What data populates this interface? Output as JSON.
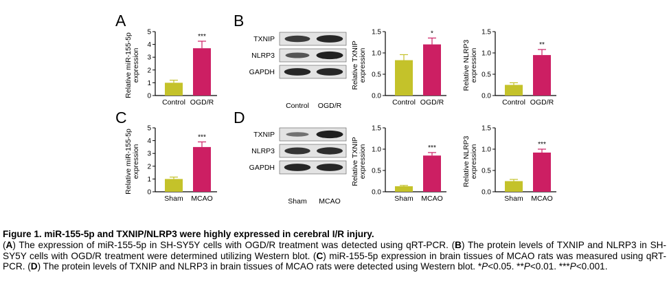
{
  "colors": {
    "olive": "#c4c22a",
    "magenta": "#cc1f63",
    "blot_dark": "#121212",
    "blot_bg": "#e3e3e3"
  },
  "panels": [
    {
      "letter": "A"
    },
    {
      "letter": "B"
    },
    {
      "letter": "C"
    },
    {
      "letter": "D"
    }
  ],
  "chart_data": [
    {
      "panel": "A",
      "type": "bar",
      "categories": [
        "Control",
        "OGD/R"
      ],
      "values": [
        1.0,
        3.7
      ],
      "errors": [
        0.2,
        0.55
      ],
      "ylabel": "Relative  miR-155-5p expression",
      "ylim": [
        0,
        5
      ],
      "yticks": [
        "0",
        "1",
        "2",
        "3",
        "4",
        "5"
      ],
      "annotations": [
        "",
        "***"
      ]
    },
    {
      "panel": "B",
      "type": "bar",
      "categories": [
        "Control",
        "OGD/R"
      ],
      "values": [
        0.83,
        1.2
      ],
      "errors": [
        0.13,
        0.15
      ],
      "ylabel": "Relative  TXNIP expression",
      "ylim": [
        0,
        1.5
      ],
      "yticks": [
        "0.0",
        "0.5",
        "1.0",
        "1.5"
      ],
      "annotations": [
        "",
        "*"
      ]
    },
    {
      "panel": "B",
      "type": "bar",
      "categories": [
        "Control",
        "OGD/R"
      ],
      "values": [
        0.25,
        0.95
      ],
      "errors": [
        0.05,
        0.13
      ],
      "ylabel": "Relative  NLRP3 expression",
      "ylim": [
        0,
        1.5
      ],
      "yticks": [
        "0.0",
        "0.5",
        "1.0",
        "1.5"
      ],
      "annotations": [
        "",
        "**"
      ]
    },
    {
      "panel": "C",
      "type": "bar",
      "categories": [
        "Sham",
        "MCAO"
      ],
      "values": [
        1.0,
        3.5
      ],
      "errors": [
        0.15,
        0.4
      ],
      "ylabel": "Relative  miR-155-5p expression",
      "ylim": [
        0,
        5
      ],
      "yticks": [
        "0",
        "1",
        "2",
        "3",
        "4",
        "5"
      ],
      "annotations": [
        "",
        "***"
      ]
    },
    {
      "panel": "D",
      "type": "bar",
      "categories": [
        "Sham",
        "MCAO"
      ],
      "values": [
        0.13,
        0.85
      ],
      "errors": [
        0.02,
        0.07
      ],
      "ylabel": "Relative  TXNIP expression",
      "ylim": [
        0,
        1.5
      ],
      "yticks": [
        "0.0",
        "0.5",
        "1.0",
        "1.5"
      ],
      "annotations": [
        "",
        "***"
      ]
    },
    {
      "panel": "D",
      "type": "bar",
      "categories": [
        "Sham",
        "MCAO"
      ],
      "values": [
        0.25,
        0.92
      ],
      "errors": [
        0.04,
        0.08
      ],
      "ylabel": "Relative  NLRP3 expression",
      "ylim": [
        0,
        1.5
      ],
      "yticks": [
        "0.0",
        "0.5",
        "1.0",
        "1.5"
      ],
      "annotations": [
        "",
        "***"
      ]
    }
  ],
  "blots": [
    {
      "panel": "B",
      "bands": [
        "TXNIP",
        "NLRP3",
        "GAPDH"
      ],
      "lanes": [
        "Control",
        "OGD/R"
      ],
      "intensity": [
        [
          0.7,
          0.85
        ],
        [
          0.5,
          0.9
        ],
        [
          0.85,
          0.85
        ]
      ]
    },
    {
      "panel": "D",
      "bands": [
        "TXNIP",
        "NLRP3",
        "GAPDH"
      ],
      "lanes": [
        "Sham",
        "MCAO"
      ],
      "intensity": [
        [
          0.3,
          0.9
        ],
        [
          0.75,
          0.8
        ],
        [
          0.85,
          0.85
        ]
      ]
    }
  ],
  "caption": {
    "title": "Figure 1. miR-155-5p and TXNIP/NLRP3 were highly expressed in cerebral I/R injury.",
    "body_html": "(<b>A</b>) The expression of miR-155-5p in SH-SY5Y cells with OGD/R treatment was detected using qRT-PCR. (<b>B</b>) The protein levels of TXNIP and NLRP3 in SH-SY5Y cells with OGD/R treatment were determined utilizing Western blot. (<b>C</b>) miR-155-5p expression in brain tissues of MCAO rats was measured using qRT-PCR. (<b>D</b>) The protein levels of TXNIP and NLRP3 in brain tissues of MCAO rats were detected using Western blot. *<i>P</i>&lt;0.05. **<i>P</i>&lt;0.01. ***<i>P</i>&lt;0.001."
  }
}
